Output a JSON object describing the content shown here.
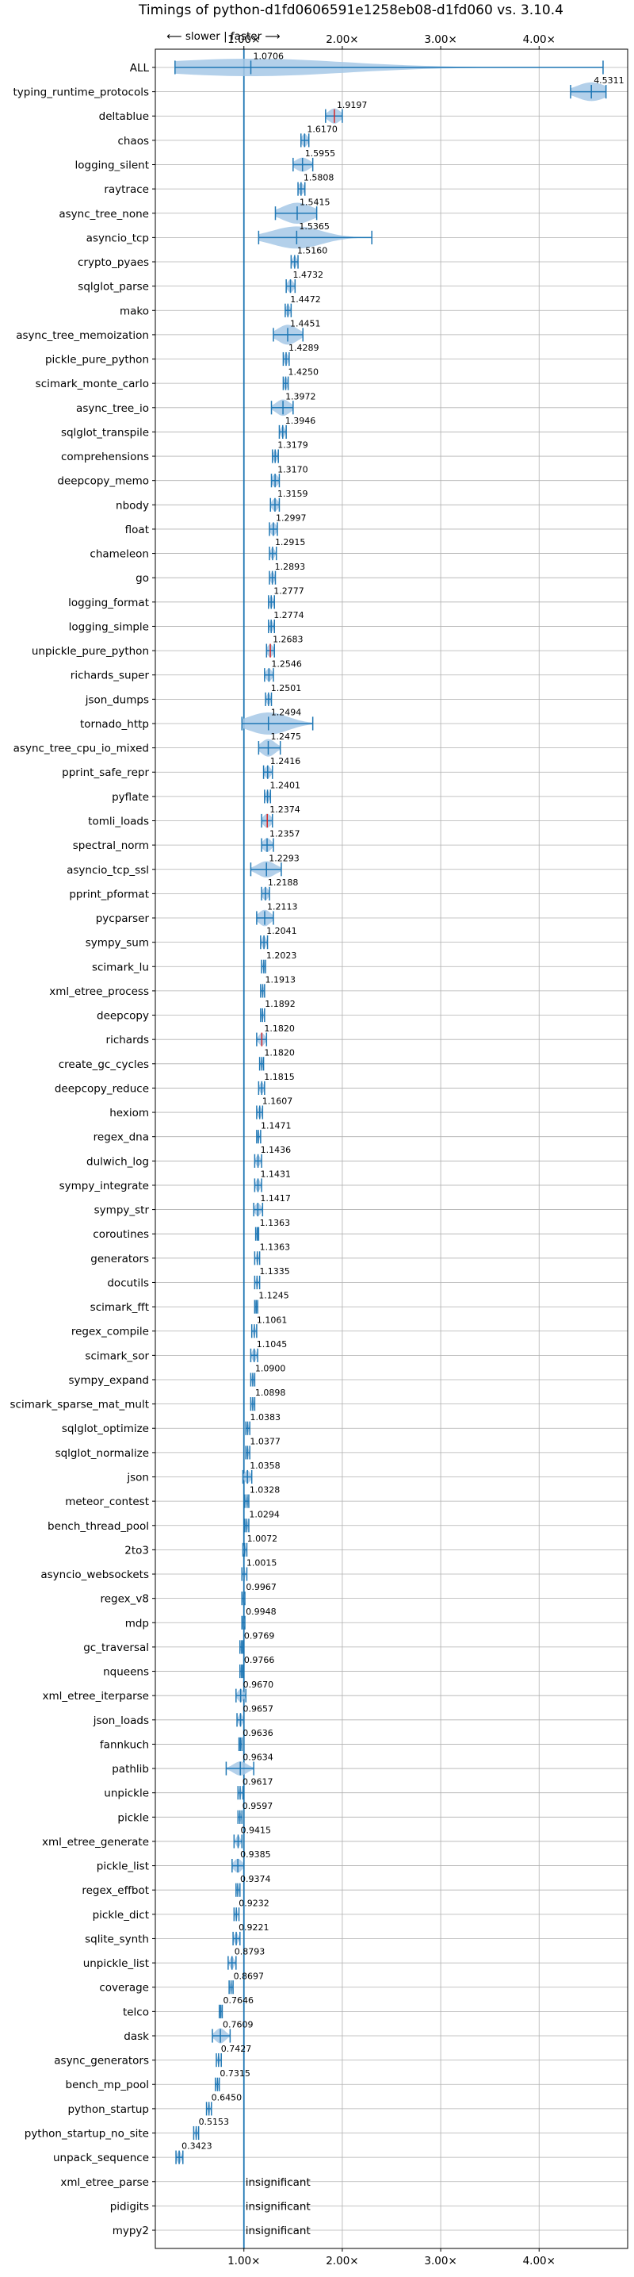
{
  "chart_data": {
    "type": "violin",
    "title": "Timings of python-d1fd0606591e1258eb08-d1fd060 vs. 3.10.4",
    "direction_label": "⟵ slower | faster ⟶",
    "x_ticks": [
      "1.00×",
      "2.00×",
      "3.00×",
      "4.00×"
    ],
    "x_tick_values": [
      1,
      2,
      3,
      4
    ],
    "xlim": [
      0.1,
      4.9
    ],
    "reference_line": 1.0,
    "grid": true,
    "insignificant_label": "insignificant",
    "benchmarks": [
      {
        "name": "ALL",
        "value": 1.0706,
        "label": "1.0706",
        "lo": 0.3,
        "hi": 4.65,
        "width": 0.75,
        "spread": 0.95
      },
      {
        "name": "typing_runtime_protocols",
        "value": 4.5311,
        "label": "4.5311",
        "lo": 4.32,
        "hi": 4.68,
        "width": 0.8,
        "spread": 0.15
      },
      {
        "name": "deltablue",
        "value": 1.9197,
        "label": "1.9197",
        "lo": 1.83,
        "hi": 2.0,
        "width": 0.65,
        "spread": 0.06,
        "red": true
      },
      {
        "name": "chaos",
        "value": 1.617,
        "label": "1.6170",
        "lo": 1.58,
        "hi": 1.66,
        "width": 0.55,
        "spread": 0.03
      },
      {
        "name": "logging_silent",
        "value": 1.5955,
        "label": "1.5955",
        "lo": 1.5,
        "hi": 1.7,
        "width": 0.6,
        "spread": 0.07
      },
      {
        "name": "raytrace",
        "value": 1.5808,
        "label": "1.5808",
        "lo": 1.55,
        "hi": 1.62,
        "width": 0.5,
        "spread": 0.03
      },
      {
        "name": "async_tree_none",
        "value": 1.5415,
        "label": "1.5415",
        "lo": 1.32,
        "hi": 1.74,
        "width": 0.9,
        "spread": 0.15
      },
      {
        "name": "asyncio_tcp",
        "value": 1.5365,
        "label": "1.5365",
        "lo": 1.15,
        "hi": 2.3,
        "width": 0.95,
        "spread": 0.25
      },
      {
        "name": "crypto_pyaes",
        "value": 1.516,
        "label": "1.5160",
        "lo": 1.48,
        "hi": 1.55,
        "width": 0.5,
        "spread": 0.02
      },
      {
        "name": "sqlglot_parse",
        "value": 1.4732,
        "label": "1.4732",
        "lo": 1.43,
        "hi": 1.52,
        "width": 0.55,
        "spread": 0.03
      },
      {
        "name": "mako",
        "value": 1.4472,
        "label": "1.4472",
        "lo": 1.42,
        "hi": 1.48,
        "width": 0.5,
        "spread": 0.02
      },
      {
        "name": "async_tree_memoization",
        "value": 1.4451,
        "label": "1.4451",
        "lo": 1.3,
        "hi": 1.6,
        "width": 0.85,
        "spread": 0.1
      },
      {
        "name": "pickle_pure_python",
        "value": 1.4289,
        "label": "1.4289",
        "lo": 1.4,
        "hi": 1.46,
        "width": 0.5,
        "spread": 0.02
      },
      {
        "name": "scimark_monte_carlo",
        "value": 1.425,
        "label": "1.4250",
        "lo": 1.4,
        "hi": 1.45,
        "width": 0.5,
        "spread": 0.02
      },
      {
        "name": "async_tree_io",
        "value": 1.3972,
        "label": "1.3972",
        "lo": 1.28,
        "hi": 1.5,
        "width": 0.7,
        "spread": 0.07
      },
      {
        "name": "sqlglot_transpile",
        "value": 1.3946,
        "label": "1.3946",
        "lo": 1.36,
        "hi": 1.43,
        "width": 0.5,
        "spread": 0.02
      },
      {
        "name": "comprehensions",
        "value": 1.3179,
        "label": "1.3179",
        "lo": 1.29,
        "hi": 1.35,
        "width": 0.5,
        "spread": 0.02
      },
      {
        "name": "deepcopy_memo",
        "value": 1.317,
        "label": "1.3170",
        "lo": 1.28,
        "hi": 1.36,
        "width": 0.55,
        "spread": 0.03
      },
      {
        "name": "nbody",
        "value": 1.3159,
        "label": "1.3159",
        "lo": 1.27,
        "hi": 1.36,
        "width": 0.55,
        "spread": 0.03
      },
      {
        "name": "float",
        "value": 1.2997,
        "label": "1.2997",
        "lo": 1.26,
        "hi": 1.34,
        "width": 0.55,
        "spread": 0.03
      },
      {
        "name": "chameleon",
        "value": 1.2915,
        "label": "1.2915",
        "lo": 1.26,
        "hi": 1.33,
        "width": 0.5,
        "spread": 0.02
      },
      {
        "name": "go",
        "value": 1.2893,
        "label": "1.2893",
        "lo": 1.26,
        "hi": 1.32,
        "width": 0.5,
        "spread": 0.02
      },
      {
        "name": "logging_format",
        "value": 1.2777,
        "label": "1.2777",
        "lo": 1.25,
        "hi": 1.31,
        "width": 0.5,
        "spread": 0.02
      },
      {
        "name": "logging_simple",
        "value": 1.2774,
        "label": "1.2774",
        "lo": 1.25,
        "hi": 1.31,
        "width": 0.5,
        "spread": 0.02
      },
      {
        "name": "unpickle_pure_python",
        "value": 1.2683,
        "label": "1.2683",
        "lo": 1.23,
        "hi": 1.31,
        "width": 0.55,
        "spread": 0.03,
        "red": true
      },
      {
        "name": "richards_super",
        "value": 1.2546,
        "label": "1.2546",
        "lo": 1.21,
        "hi": 1.3,
        "width": 0.55,
        "spread": 0.03
      },
      {
        "name": "json_dumps",
        "value": 1.2501,
        "label": "1.2501",
        "lo": 1.22,
        "hi": 1.28,
        "width": 0.5,
        "spread": 0.02
      },
      {
        "name": "tornado_http",
        "value": 1.2494,
        "label": "1.2494",
        "lo": 0.98,
        "hi": 1.7,
        "width": 0.95,
        "spread": 0.2
      },
      {
        "name": "async_tree_cpu_io_mixed",
        "value": 1.2475,
        "label": "1.2475",
        "lo": 1.15,
        "hi": 1.37,
        "width": 0.75,
        "spread": 0.07
      },
      {
        "name": "pprint_safe_repr",
        "value": 1.2416,
        "label": "1.2416",
        "lo": 1.2,
        "hi": 1.29,
        "width": 0.55,
        "spread": 0.03
      },
      {
        "name": "pyflate",
        "value": 1.2401,
        "label": "1.2401",
        "lo": 1.21,
        "hi": 1.27,
        "width": 0.5,
        "spread": 0.02
      },
      {
        "name": "tomli_loads",
        "value": 1.2374,
        "label": "1.2374",
        "lo": 1.18,
        "hi": 1.29,
        "width": 0.6,
        "spread": 0.04,
        "red": true
      },
      {
        "name": "spectral_norm",
        "value": 1.2357,
        "label": "1.2357",
        "lo": 1.18,
        "hi": 1.3,
        "width": 0.6,
        "spread": 0.04
      },
      {
        "name": "asyncio_tcp_ssl",
        "value": 1.2293,
        "label": "1.2293",
        "lo": 1.07,
        "hi": 1.38,
        "width": 0.7,
        "spread": 0.09
      },
      {
        "name": "pprint_pformat",
        "value": 1.2188,
        "label": "1.2188",
        "lo": 1.18,
        "hi": 1.26,
        "width": 0.55,
        "spread": 0.03
      },
      {
        "name": "pycparser",
        "value": 1.2113,
        "label": "1.2113",
        "lo": 1.13,
        "hi": 1.3,
        "width": 0.7,
        "spread": 0.06
      },
      {
        "name": "sympy_sum",
        "value": 1.2041,
        "label": "1.2041",
        "lo": 1.17,
        "hi": 1.24,
        "width": 0.55,
        "spread": 0.02
      },
      {
        "name": "scimark_lu",
        "value": 1.2023,
        "label": "1.2023",
        "lo": 1.18,
        "hi": 1.22,
        "width": 0.5,
        "spread": 0.01
      },
      {
        "name": "xml_etree_process",
        "value": 1.1913,
        "label": "1.1913",
        "lo": 1.17,
        "hi": 1.21,
        "width": 0.5,
        "spread": 0.01
      },
      {
        "name": "deepcopy",
        "value": 1.1892,
        "label": "1.1892",
        "lo": 1.17,
        "hi": 1.21,
        "width": 0.5,
        "spread": 0.01
      },
      {
        "name": "richards",
        "value": 1.182,
        "label": "1.1820",
        "lo": 1.13,
        "hi": 1.23,
        "width": 0.55,
        "spread": 0.03,
        "red": true
      },
      {
        "name": "create_gc_cycles",
        "value": 1.182,
        "label": "1.1820",
        "lo": 1.16,
        "hi": 1.2,
        "width": 0.5,
        "spread": 0.01
      },
      {
        "name": "deepcopy_reduce",
        "value": 1.1815,
        "label": "1.1815",
        "lo": 1.15,
        "hi": 1.21,
        "width": 0.5,
        "spread": 0.02
      },
      {
        "name": "hexiom",
        "value": 1.1607,
        "label": "1.1607",
        "lo": 1.13,
        "hi": 1.19,
        "width": 0.5,
        "spread": 0.02
      },
      {
        "name": "regex_dna",
        "value": 1.1471,
        "label": "1.1471",
        "lo": 1.13,
        "hi": 1.17,
        "width": 0.5,
        "spread": 0.01
      },
      {
        "name": "dulwich_log",
        "value": 1.1436,
        "label": "1.1436",
        "lo": 1.11,
        "hi": 1.18,
        "width": 0.5,
        "spread": 0.02
      },
      {
        "name": "sympy_integrate",
        "value": 1.1431,
        "label": "1.1431",
        "lo": 1.11,
        "hi": 1.18,
        "width": 0.55,
        "spread": 0.02
      },
      {
        "name": "sympy_str",
        "value": 1.1417,
        "label": "1.1417",
        "lo": 1.1,
        "hi": 1.19,
        "width": 0.55,
        "spread": 0.03
      },
      {
        "name": "coroutines",
        "value": 1.1363,
        "label": "1.1363",
        "lo": 1.12,
        "hi": 1.15,
        "width": 0.5,
        "spread": 0.01
      },
      {
        "name": "generators",
        "value": 1.1363,
        "label": "1.1363",
        "lo": 1.11,
        "hi": 1.16,
        "width": 0.5,
        "spread": 0.01
      },
      {
        "name": "docutils",
        "value": 1.1335,
        "label": "1.1335",
        "lo": 1.11,
        "hi": 1.16,
        "width": 0.5,
        "spread": 0.01
      },
      {
        "name": "scimark_fft",
        "value": 1.1245,
        "label": "1.1245",
        "lo": 1.11,
        "hi": 1.14,
        "width": 0.5,
        "spread": 0.01
      },
      {
        "name": "regex_compile",
        "value": 1.1061,
        "label": "1.1061",
        "lo": 1.08,
        "hi": 1.13,
        "width": 0.5,
        "spread": 0.01
      },
      {
        "name": "scimark_sor",
        "value": 1.1045,
        "label": "1.1045",
        "lo": 1.07,
        "hi": 1.14,
        "width": 0.55,
        "spread": 0.02
      },
      {
        "name": "sympy_expand",
        "value": 1.09,
        "label": "1.0900",
        "lo": 1.07,
        "hi": 1.11,
        "width": 0.5,
        "spread": 0.01
      },
      {
        "name": "scimark_sparse_mat_mult",
        "value": 1.0898,
        "label": "1.0898",
        "lo": 1.07,
        "hi": 1.11,
        "width": 0.5,
        "spread": 0.01
      },
      {
        "name": "sqlglot_optimize",
        "value": 1.0383,
        "label": "1.0383",
        "lo": 1.02,
        "hi": 1.06,
        "width": 0.5,
        "spread": 0.01
      },
      {
        "name": "sqlglot_normalize",
        "value": 1.0377,
        "label": "1.0377",
        "lo": 1.02,
        "hi": 1.06,
        "width": 0.5,
        "spread": 0.01
      },
      {
        "name": "json",
        "value": 1.0358,
        "label": "1.0358",
        "lo": 0.99,
        "hi": 1.08,
        "width": 0.55,
        "spread": 0.03
      },
      {
        "name": "meteor_contest",
        "value": 1.0328,
        "label": "1.0328",
        "lo": 1.01,
        "hi": 1.05,
        "width": 0.5,
        "spread": 0.01
      },
      {
        "name": "bench_thread_pool",
        "value": 1.0294,
        "label": "1.0294",
        "lo": 1.01,
        "hi": 1.05,
        "width": 0.5,
        "spread": 0.01
      },
      {
        "name": "2to3",
        "value": 1.0072,
        "label": "1.0072",
        "lo": 0.99,
        "hi": 1.03,
        "width": 0.5,
        "spread": 0.01
      },
      {
        "name": "asyncio_websockets",
        "value": 1.0015,
        "label": "1.0015",
        "lo": 0.98,
        "hi": 1.03,
        "width": 0.5,
        "spread": 0.01
      },
      {
        "name": "regex_v8",
        "value": 0.9967,
        "label": "0.9967",
        "lo": 0.98,
        "hi": 1.01,
        "width": 0.5,
        "spread": 0.01
      },
      {
        "name": "mdp",
        "value": 0.9948,
        "label": "0.9948",
        "lo": 0.98,
        "hi": 1.01,
        "width": 0.5,
        "spread": 0.01
      },
      {
        "name": "gc_traversal",
        "value": 0.9769,
        "label": "0.9769",
        "lo": 0.96,
        "hi": 0.99,
        "width": 0.5,
        "spread": 0.01
      },
      {
        "name": "nqueens",
        "value": 0.9766,
        "label": "0.9766",
        "lo": 0.96,
        "hi": 0.99,
        "width": 0.5,
        "spread": 0.01
      },
      {
        "name": "xml_etree_iterparse",
        "value": 0.967,
        "label": "0.9670",
        "lo": 0.92,
        "hi": 1.02,
        "width": 0.55,
        "spread": 0.03
      },
      {
        "name": "json_loads",
        "value": 0.9657,
        "label": "0.9657",
        "lo": 0.93,
        "hi": 1.0,
        "width": 0.55,
        "spread": 0.02
      },
      {
        "name": "fannkuch",
        "value": 0.9636,
        "label": "0.9636",
        "lo": 0.95,
        "hi": 0.98,
        "width": 0.5,
        "spread": 0.01
      },
      {
        "name": "pathlib",
        "value": 0.9634,
        "label": "0.9634",
        "lo": 0.82,
        "hi": 1.1,
        "width": 0.6,
        "spread": 0.07
      },
      {
        "name": "unpickle",
        "value": 0.9617,
        "label": "0.9617",
        "lo": 0.94,
        "hi": 0.99,
        "width": 0.5,
        "spread": 0.01
      },
      {
        "name": "pickle",
        "value": 0.9597,
        "label": "0.9597",
        "lo": 0.94,
        "hi": 0.98,
        "width": 0.5,
        "spread": 0.01
      },
      {
        "name": "xml_etree_generate",
        "value": 0.9415,
        "label": "0.9415",
        "lo": 0.9,
        "hi": 0.98,
        "width": 0.5,
        "spread": 0.02
      },
      {
        "name": "pickle_list",
        "value": 0.9385,
        "label": "0.9385",
        "lo": 0.88,
        "hi": 1.0,
        "width": 0.6,
        "spread": 0.04
      },
      {
        "name": "regex_effbot",
        "value": 0.9374,
        "label": "0.9374",
        "lo": 0.92,
        "hi": 0.96,
        "width": 0.5,
        "spread": 0.01
      },
      {
        "name": "pickle_dict",
        "value": 0.9232,
        "label": "0.9232",
        "lo": 0.9,
        "hi": 0.95,
        "width": 0.5,
        "spread": 0.01
      },
      {
        "name": "sqlite_synth",
        "value": 0.9221,
        "label": "0.9221",
        "lo": 0.89,
        "hi": 0.96,
        "width": 0.5,
        "spread": 0.02
      },
      {
        "name": "unpickle_list",
        "value": 0.8793,
        "label": "0.8793",
        "lo": 0.84,
        "hi": 0.92,
        "width": 0.55,
        "spread": 0.02
      },
      {
        "name": "coverage",
        "value": 0.8697,
        "label": "0.8697",
        "lo": 0.85,
        "hi": 0.89,
        "width": 0.5,
        "spread": 0.01
      },
      {
        "name": "telco",
        "value": 0.7646,
        "label": "0.7646",
        "lo": 0.75,
        "hi": 0.78,
        "width": 0.5,
        "spread": 0.01
      },
      {
        "name": "dask",
        "value": 0.7609,
        "label": "0.7609",
        "lo": 0.68,
        "hi": 0.86,
        "width": 0.65,
        "spread": 0.05
      },
      {
        "name": "async_generators",
        "value": 0.7427,
        "label": "0.7427",
        "lo": 0.72,
        "hi": 0.77,
        "width": 0.5,
        "spread": 0.01
      },
      {
        "name": "bench_mp_pool",
        "value": 0.7315,
        "label": "0.7315",
        "lo": 0.71,
        "hi": 0.75,
        "width": 0.5,
        "spread": 0.01
      },
      {
        "name": "python_startup",
        "value": 0.645,
        "label": "0.6450",
        "lo": 0.62,
        "hi": 0.67,
        "width": 0.5,
        "spread": 0.01
      },
      {
        "name": "python_startup_no_site",
        "value": 0.5153,
        "label": "0.5153",
        "lo": 0.49,
        "hi": 0.54,
        "width": 0.5,
        "spread": 0.01
      },
      {
        "name": "unpack_sequence",
        "value": 0.3423,
        "label": "0.3423",
        "lo": 0.31,
        "hi": 0.38,
        "width": 0.55,
        "spread": 0.02
      },
      {
        "name": "xml_etree_parse",
        "insignificant": true
      },
      {
        "name": "pidigits",
        "insignificant": true
      },
      {
        "name": "mypy2",
        "insignificant": true
      }
    ]
  },
  "colors": {
    "violin": "#a6c8e6",
    "line": "#1f77b4",
    "median": "#d62728",
    "grid": "#b0b0b0"
  }
}
